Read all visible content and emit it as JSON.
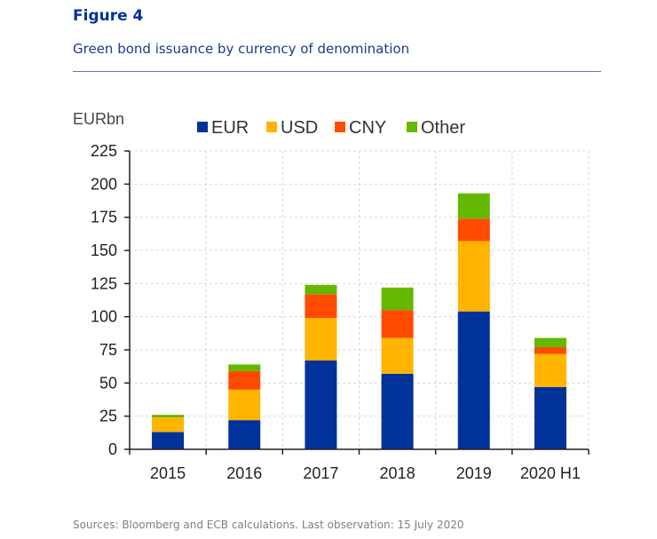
{
  "header": {
    "figure_label": "Figure 4",
    "title": "Green bond issuance by currency of denomination"
  },
  "footer": {
    "source": "Sources: Bloomberg and ECB calculations. Last observation: 15 July 2020"
  },
  "chart_data": {
    "type": "bar",
    "stacked": true,
    "unit_label": "EURbn",
    "categories": [
      "2015",
      "2016",
      "2017",
      "2018",
      "2019",
      "2020 H1"
    ],
    "series": [
      {
        "name": "EUR",
        "color": "#003299",
        "values": [
          13,
          22,
          67,
          57,
          104,
          47
        ]
      },
      {
        "name": "USD",
        "color": "#ffb400",
        "values": [
          11,
          23,
          32,
          27,
          53,
          25
        ]
      },
      {
        "name": "CNY",
        "color": "#ff4b00",
        "values": [
          0,
          14,
          18,
          21,
          17,
          5
        ]
      },
      {
        "name": "Other",
        "color": "#65b800",
        "values": [
          2,
          5,
          7,
          17,
          19,
          7
        ]
      }
    ],
    "ylim": [
      0,
      225
    ],
    "yticks": [
      "0",
      "25",
      "50",
      "75",
      "100",
      "125",
      "150",
      "175",
      "200",
      "225"
    ],
    "grid": true,
    "legend_position": "top"
  }
}
